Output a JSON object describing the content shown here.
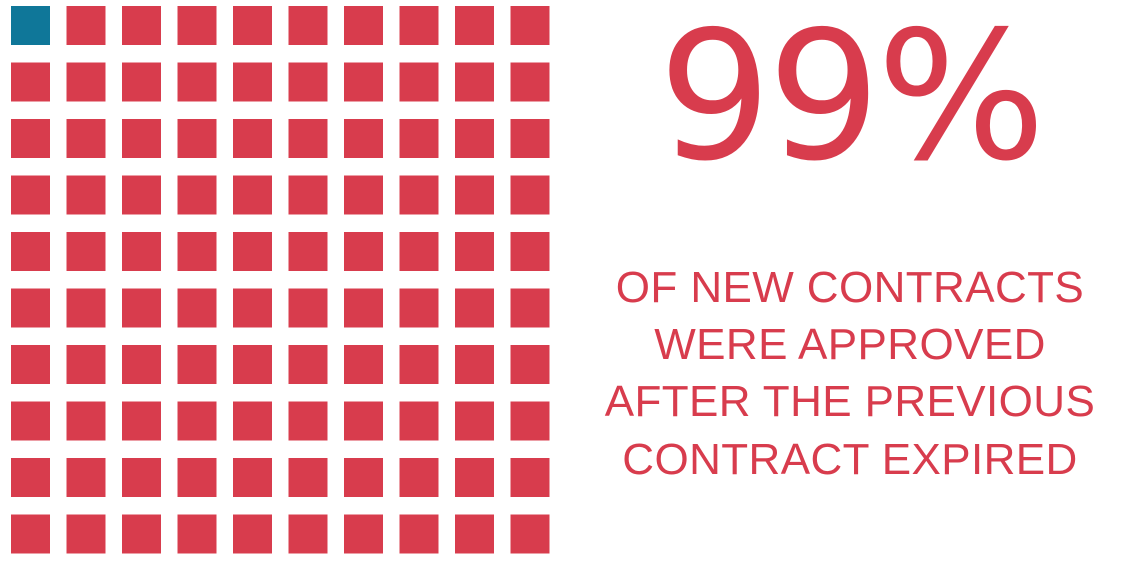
{
  "chart_data": {
    "type": "waffle",
    "rows": 10,
    "cols": 10,
    "total": 100,
    "highlighted": 1,
    "highlight_color": "#0f7799",
    "base_color": "#d83c4d",
    "headline": "99%",
    "caption_lines": [
      "OF NEW CONTRACTS",
      "WERE APPROVED",
      "AFTER THE PREVIOUS",
      "CONTRACT EXPIRED"
    ]
  }
}
